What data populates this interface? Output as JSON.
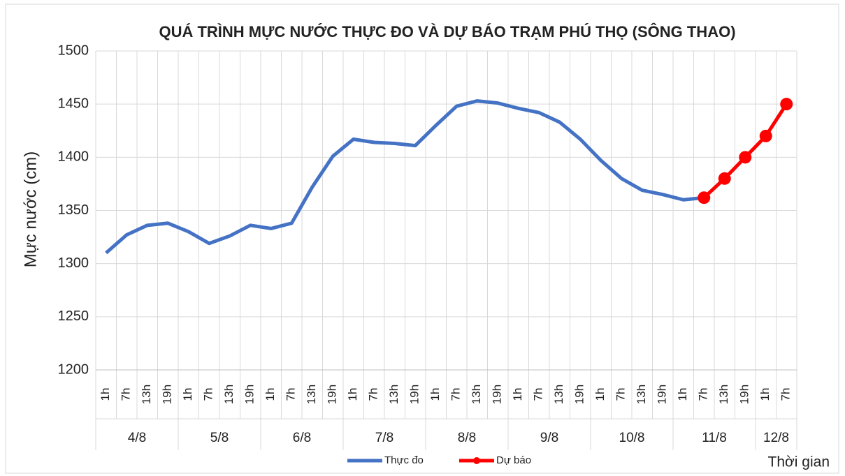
{
  "chart_data": {
    "type": "line",
    "title": "QUÁ TRÌNH MỰC NƯỚC THỰC ĐO VÀ DỰ BÁO TRẠM PHÚ THỌ (SÔNG THAO)",
    "y_label": "Mực nước (cm)",
    "x_label": "Thời gian",
    "categories": [
      "1h",
      "7h",
      "13h",
      "19h",
      "1h",
      "7h",
      "13h",
      "19h",
      "1h",
      "7h",
      "13h",
      "19h",
      "1h",
      "7h",
      "13h",
      "19h",
      "1h",
      "7h",
      "13h",
      "19h",
      "1h",
      "7h",
      "13h",
      "19h",
      "1h",
      "7h",
      "13h",
      "19h",
      "1h",
      "7h",
      "13h",
      "19h",
      "1h",
      "7h"
    ],
    "category_groups": [
      {
        "label": "4/8",
        "span": 4
      },
      {
        "label": "5/8",
        "span": 4
      },
      {
        "label": "6/8",
        "span": 4
      },
      {
        "label": "7/8",
        "span": 4
      },
      {
        "label": "8/8",
        "span": 4
      },
      {
        "label": "9/8",
        "span": 4
      },
      {
        "label": "10/8",
        "span": 4
      },
      {
        "label": "11/8",
        "span": 4
      },
      {
        "label": "12/8",
        "span": 2
      }
    ],
    "series": [
      {
        "name": "Thực đo",
        "color": "#4472c4",
        "markers": false,
        "values": [
          1310,
          1327,
          1336,
          1338,
          1330,
          1319,
          1326,
          1336,
          1333,
          1338,
          1372,
          1401,
          1417,
          1414,
          1413,
          1411,
          1430,
          1448,
          1453,
          1451,
          1446,
          1442,
          1433,
          1417,
          1397,
          1380,
          1369,
          1365,
          1360,
          1362,
          null,
          null,
          null,
          null
        ]
      },
      {
        "name": "Dự báo",
        "color": "#ff0000",
        "markers": true,
        "values": [
          null,
          null,
          null,
          null,
          null,
          null,
          null,
          null,
          null,
          null,
          null,
          null,
          null,
          null,
          null,
          null,
          null,
          null,
          null,
          null,
          null,
          null,
          null,
          null,
          null,
          null,
          null,
          null,
          null,
          1362,
          1380,
          1400,
          1420,
          1450
        ]
      }
    ],
    "ylim": [
      1200,
      1500
    ],
    "yticks": [
      1200,
      1250,
      1300,
      1350,
      1400,
      1450,
      1500
    ],
    "grid": true,
    "legend": "bottom"
  }
}
